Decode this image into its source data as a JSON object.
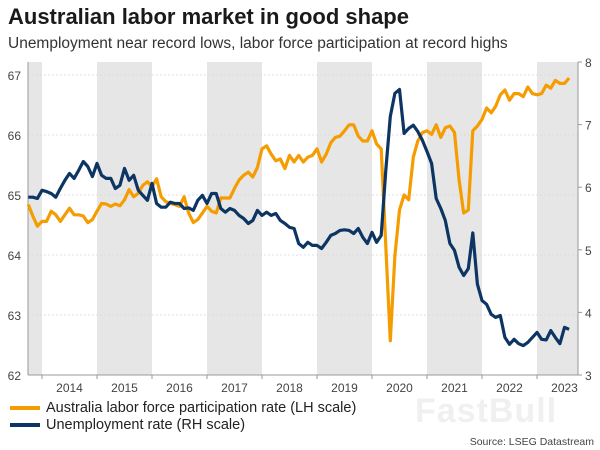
{
  "title": "Australian labor market in good shape",
  "subtitle": "Unemployment near record lows, labor force participation at record highs",
  "source": "Source: LSEG Datastream",
  "watermark": "FastBull",
  "chart_data": {
    "type": "line",
    "title": "Australian labor market in good shape",
    "subtitle": "Unemployment near record lows, labor force participation at record highs",
    "y_left": {
      "range": [
        62,
        67
      ],
      "ticks": [
        "62",
        "63",
        "64",
        "65",
        "66",
        "67"
      ]
    },
    "y_right": {
      "range": [
        3,
        8
      ],
      "ticks": [
        "3",
        "4",
        "5",
        "6",
        "7",
        "8"
      ]
    },
    "x_tick_labels": [
      "2014",
      "2015",
      "2016",
      "2017",
      "2018",
      "2019",
      "2020",
      "2021",
      "2022",
      "2023"
    ],
    "shaded_years": [
      2013,
      2015,
      2017,
      2019,
      2021,
      2023
    ],
    "grid": true,
    "legend_position": "bottom-left",
    "x": [
      "2013-10",
      "2013-11",
      "2013-12",
      "2014-01",
      "2014-02",
      "2014-03",
      "2014-04",
      "2014-05",
      "2014-06",
      "2014-07",
      "2014-08",
      "2014-09",
      "2014-10",
      "2014-11",
      "2014-12",
      "2015-01",
      "2015-02",
      "2015-03",
      "2015-04",
      "2015-05",
      "2015-06",
      "2015-07",
      "2015-08",
      "2015-09",
      "2015-10",
      "2015-11",
      "2015-12",
      "2016-01",
      "2016-02",
      "2016-03",
      "2016-04",
      "2016-05",
      "2016-06",
      "2016-07",
      "2016-08",
      "2016-09",
      "2016-10",
      "2016-11",
      "2016-12",
      "2017-01",
      "2017-02",
      "2017-03",
      "2017-04",
      "2017-05",
      "2017-06",
      "2017-07",
      "2017-08",
      "2017-09",
      "2017-10",
      "2017-11",
      "2017-12",
      "2018-01",
      "2018-02",
      "2018-03",
      "2018-04",
      "2018-05",
      "2018-06",
      "2018-07",
      "2018-08",
      "2018-09",
      "2018-10",
      "2018-11",
      "2018-12",
      "2019-01",
      "2019-02",
      "2019-03",
      "2019-04",
      "2019-05",
      "2019-06",
      "2019-07",
      "2019-08",
      "2019-09",
      "2019-10",
      "2019-11",
      "2019-12",
      "2020-01",
      "2020-02",
      "2020-03",
      "2020-04",
      "2020-05",
      "2020-06",
      "2020-07",
      "2020-08",
      "2020-09",
      "2020-10",
      "2020-11",
      "2020-12",
      "2021-01",
      "2021-02",
      "2021-03",
      "2021-04",
      "2021-05",
      "2021-06",
      "2021-07",
      "2021-08",
      "2021-09",
      "2021-10",
      "2021-11",
      "2021-12",
      "2022-01",
      "2022-02",
      "2022-03",
      "2022-04",
      "2022-05",
      "2022-06",
      "2022-07",
      "2022-08",
      "2022-09",
      "2022-10",
      "2022-11",
      "2022-12",
      "2023-01",
      "2023-02",
      "2023-03",
      "2023-04",
      "2023-05",
      "2023-06",
      "2023-07",
      "2023-08"
    ],
    "series": [
      {
        "name": "Australia labor force participation rate (LH scale)",
        "axis": "left",
        "color": "#f59c00",
        "values": [
          64.84,
          64.65,
          64.48,
          64.56,
          64.56,
          64.73,
          64.67,
          64.56,
          64.67,
          64.78,
          64.67,
          64.67,
          64.65,
          64.54,
          64.59,
          64.73,
          64.86,
          64.85,
          64.81,
          64.85,
          64.82,
          64.92,
          65.09,
          64.97,
          65.03,
          65.16,
          65.22,
          65.14,
          65.27,
          64.97,
          64.89,
          64.86,
          64.84,
          64.81,
          64.97,
          64.7,
          64.54,
          64.59,
          64.7,
          64.81,
          64.73,
          64.7,
          64.95,
          64.95,
          64.95,
          65.11,
          65.25,
          65.33,
          65.38,
          65.3,
          65.46,
          65.77,
          65.82,
          65.68,
          65.57,
          65.6,
          65.44,
          65.66,
          65.55,
          65.66,
          65.55,
          65.63,
          65.66,
          65.77,
          65.55,
          65.68,
          65.87,
          65.96,
          65.98,
          66.07,
          66.17,
          66.17,
          65.98,
          65.9,
          65.9,
          66.07,
          65.85,
          65.77,
          64.15,
          62.57,
          63.99,
          64.75,
          65.0,
          64.92,
          65.63,
          65.9,
          66.04,
          66.07,
          66.01,
          66.17,
          65.96,
          66.12,
          66.15,
          66.04,
          65.25,
          64.7,
          64.75,
          66.07,
          66.15,
          66.26,
          66.45,
          66.37,
          66.48,
          66.67,
          66.75,
          66.58,
          66.69,
          66.69,
          66.64,
          66.8,
          66.69,
          66.67,
          66.69,
          66.83,
          66.78,
          66.91,
          66.86,
          66.86,
          66.95
        ]
      },
      {
        "name": "Unemployment rate (RH scale)",
        "axis": "right",
        "color": "#0d3564",
        "values": [
          5.84,
          5.84,
          5.82,
          5.95,
          5.93,
          5.9,
          5.84,
          5.98,
          6.11,
          6.22,
          6.14,
          6.27,
          6.41,
          6.33,
          6.17,
          6.38,
          6.19,
          6.14,
          6.14,
          5.98,
          6.03,
          6.3,
          6.11,
          6.19,
          5.95,
          5.87,
          5.79,
          6.06,
          5.74,
          5.68,
          5.68,
          5.76,
          5.74,
          5.74,
          5.66,
          5.67,
          5.63,
          5.79,
          5.87,
          5.74,
          5.9,
          5.9,
          5.66,
          5.6,
          5.66,
          5.63,
          5.55,
          5.5,
          5.42,
          5.47,
          5.63,
          5.55,
          5.6,
          5.55,
          5.58,
          5.47,
          5.42,
          5.36,
          5.34,
          5.1,
          5.04,
          5.12,
          5.07,
          5.07,
          5.02,
          5.12,
          5.23,
          5.26,
          5.31,
          5.32,
          5.31,
          5.26,
          5.34,
          5.2,
          5.1,
          5.28,
          5.12,
          5.23,
          6.27,
          7.13,
          7.5,
          7.56,
          6.86,
          6.94,
          6.99,
          6.89,
          6.75,
          6.57,
          6.38,
          5.82,
          5.66,
          5.47,
          5.1,
          4.99,
          4.72,
          4.59,
          4.7,
          5.27,
          4.45,
          4.19,
          4.13,
          3.97,
          3.92,
          3.95,
          3.6,
          3.49,
          3.57,
          3.5,
          3.47,
          3.52,
          3.6,
          3.68,
          3.57,
          3.56,
          3.71,
          3.6,
          3.5,
          3.76,
          3.73
        ]
      }
    ],
    "colors": {
      "shade": "#e6e6e6",
      "grid": "#d9d9d9",
      "axis": "#999999"
    }
  }
}
